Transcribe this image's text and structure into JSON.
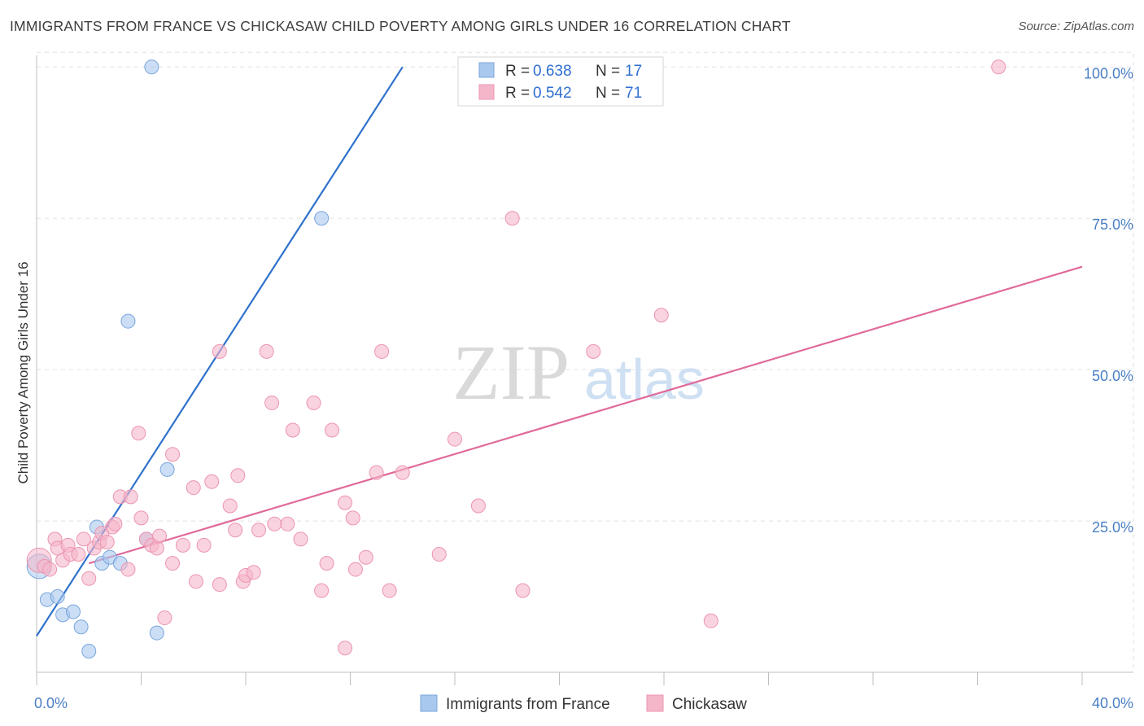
{
  "title": "IMMIGRANTS FROM FRANCE VS CHICKASAW CHILD POVERTY AMONG GIRLS UNDER 16 CORRELATION CHART",
  "source": "Source: ZipAtlas.com",
  "watermark": {
    "zip": "ZIP",
    "atlas": "atlas"
  },
  "colors": {
    "blue_fill": "#a9c8ee",
    "blue_stroke": "#7aa6dc",
    "blue_line": "#2f72cc",
    "pink_fill": "#f5b6c9",
    "pink_stroke": "#ec95b0",
    "pink_line": "#e0699a",
    "grid": "#e2e2e2",
    "axis_text": "#4a7fc4"
  },
  "chart_data": {
    "type": "scatter",
    "title": "IMMIGRANTS FROM FRANCE VS CHICKASAW CHILD POVERTY AMONG GIRLS UNDER 16 CORRELATION CHART",
    "xlabel": "",
    "ylabel": "Child Poverty Among Girls Under 16",
    "xlim": [
      0,
      40
    ],
    "ylim": [
      0,
      103
    ],
    "x_tick_labels": [
      {
        "value": 0,
        "label": "0.0%"
      },
      {
        "value": 40,
        "label": "40.0%"
      }
    ],
    "y_tick_labels": [
      {
        "value": 25,
        "label": "25.0%"
      },
      {
        "value": 50,
        "label": "50.0%"
      },
      {
        "value": 75,
        "label": "75.0%"
      },
      {
        "value": 100,
        "label": "100.0%"
      }
    ],
    "x_minor_ticks": [
      0,
      4,
      8,
      12,
      16,
      20,
      24,
      28,
      32,
      36,
      40
    ],
    "legend": [
      {
        "name": "Immigrants from France",
        "r_label": "R =",
        "r": "0.638",
        "n_label": "N =",
        "n": "17"
      },
      {
        "name": "Chickasaw",
        "r_label": "R =",
        "r": "0.542",
        "n_label": "N =",
        "n": "71"
      }
    ],
    "series": [
      {
        "name": "Immigrants from France",
        "color": "blue",
        "points": [
          [
            0.1,
            17.5
          ],
          [
            0.4,
            12
          ],
          [
            0.8,
            12.5
          ],
          [
            1.0,
            9.5
          ],
          [
            1.4,
            10
          ],
          [
            1.7,
            7.5
          ],
          [
            2.0,
            3.5
          ],
          [
            2.3,
            24
          ],
          [
            2.5,
            18
          ],
          [
            2.8,
            19
          ],
          [
            3.2,
            18
          ],
          [
            3.5,
            58
          ],
          [
            4.2,
            22
          ],
          [
            4.4,
            100
          ],
          [
            4.6,
            6.5
          ],
          [
            5.0,
            33.5
          ],
          [
            10.9,
            75
          ]
        ],
        "trendline": [
          [
            0,
            6
          ],
          [
            14,
            100
          ]
        ]
      },
      {
        "name": "Chickasaw",
        "color": "pink",
        "points": [
          [
            0.1,
            18.5
          ],
          [
            0.3,
            17.5
          ],
          [
            0.5,
            17
          ],
          [
            0.7,
            22
          ],
          [
            0.8,
            20.5
          ],
          [
            1.0,
            18.5
          ],
          [
            1.2,
            21
          ],
          [
            1.3,
            19.5
          ],
          [
            1.6,
            19.5
          ],
          [
            1.8,
            22
          ],
          [
            2.0,
            15.5
          ],
          [
            2.2,
            20.5
          ],
          [
            2.4,
            21.5
          ],
          [
            2.5,
            23
          ],
          [
            2.7,
            21.5
          ],
          [
            2.9,
            24
          ],
          [
            3.0,
            24.5
          ],
          [
            3.2,
            29
          ],
          [
            3.5,
            17
          ],
          [
            3.6,
            29
          ],
          [
            3.9,
            39.5
          ],
          [
            4.0,
            25.5
          ],
          [
            4.2,
            22
          ],
          [
            4.4,
            21
          ],
          [
            4.6,
            20.5
          ],
          [
            4.7,
            22.5
          ],
          [
            4.9,
            9
          ],
          [
            5.2,
            18
          ],
          [
            5.2,
            36
          ],
          [
            5.6,
            21
          ],
          [
            6.0,
            30.5
          ],
          [
            6.1,
            15
          ],
          [
            6.4,
            21
          ],
          [
            6.7,
            31.5
          ],
          [
            7.0,
            14.5
          ],
          [
            7.0,
            53
          ],
          [
            7.4,
            27.5
          ],
          [
            7.6,
            23.5
          ],
          [
            7.7,
            32.5
          ],
          [
            7.9,
            15
          ],
          [
            8.0,
            16
          ],
          [
            8.3,
            16.5
          ],
          [
            8.5,
            23.5
          ],
          [
            8.8,
            53
          ],
          [
            9.0,
            44.5
          ],
          [
            9.1,
            24.5
          ],
          [
            9.6,
            24.5
          ],
          [
            9.8,
            40
          ],
          [
            10.1,
            22
          ],
          [
            10.6,
            44.5
          ],
          [
            10.9,
            13.5
          ],
          [
            11.1,
            18
          ],
          [
            11.3,
            40
          ],
          [
            11.8,
            28
          ],
          [
            11.8,
            4
          ],
          [
            12.1,
            25.5
          ],
          [
            12.2,
            17
          ],
          [
            12.6,
            19
          ],
          [
            13.2,
            53
          ],
          [
            13.0,
            33
          ],
          [
            13.5,
            13.5
          ],
          [
            14.0,
            33
          ],
          [
            15.4,
            19.5
          ],
          [
            16.0,
            38.5
          ],
          [
            16.9,
            27.5
          ],
          [
            18.2,
            75
          ],
          [
            18.6,
            13.5
          ],
          [
            21.3,
            53
          ],
          [
            23.9,
            59
          ],
          [
            25.8,
            8.5
          ],
          [
            36.8,
            100
          ]
        ],
        "trendline": [
          [
            2,
            18
          ],
          [
            40,
            67
          ]
        ]
      }
    ]
  }
}
